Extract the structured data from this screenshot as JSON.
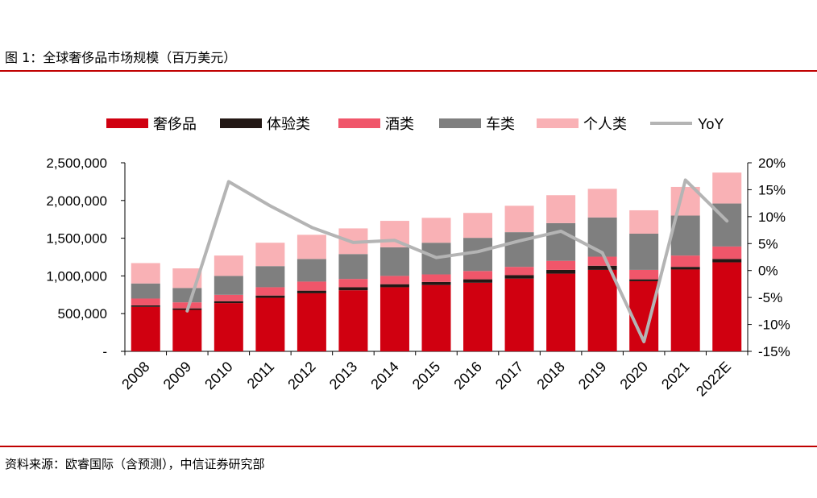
{
  "header": {
    "title": "图 1：全球奢侈品市场规模（百万美元）"
  },
  "footer": {
    "source": "资料来源：欧睿国际（含预测），中信证券研究部"
  },
  "colors": {
    "rule": "#c00000",
    "luxury": "#d00010",
    "experience": "#231815",
    "wine": "#f0566a",
    "car": "#7f7f7f",
    "personal": "#f9b1b5",
    "yoy": "#b4b4b4",
    "axis": "#000000"
  },
  "chart_data": {
    "type": "bar",
    "stacked": true,
    "title": "全球奢侈品市场规模（百万美元）",
    "categories": [
      "2008",
      "2009",
      "2010",
      "2011",
      "2012",
      "2013",
      "2014",
      "2015",
      "2016",
      "2017",
      "2018",
      "2019",
      "2020",
      "2021",
      "2022E"
    ],
    "y_left": {
      "min": 0,
      "max": 2500000,
      "ticks": [
        0,
        500000,
        1000000,
        1500000,
        2000000,
        2500000
      ],
      "tick_labels": [
        "-",
        "500,000",
        "1,000,000",
        "1,500,000",
        "2,000,000",
        "2,500,000"
      ]
    },
    "y_right": {
      "min": -15,
      "max": 20,
      "ticks": [
        -15,
        -10,
        -5,
        0,
        5,
        10,
        15,
        20
      ],
      "tick_labels": [
        "-15%",
        "-10%",
        "-5%",
        "0%",
        "5%",
        "10%",
        "15%",
        "20%"
      ]
    },
    "series": [
      {
        "name": "奢侈品",
        "key": "luxury",
        "values": [
          590000,
          550000,
          640000,
          710000,
          770000,
          810000,
          850000,
          880000,
          910000,
          965000,
          1030000,
          1080000,
          930000,
          1085000,
          1180000
        ]
      },
      {
        "name": "体验类",
        "key": "experience",
        "values": [
          20000,
          20000,
          25000,
          30000,
          35000,
          40000,
          40000,
          40000,
          45000,
          45000,
          50000,
          55000,
          25000,
          35000,
          45000
        ]
      },
      {
        "name": "酒类",
        "key": "wine",
        "values": [
          90000,
          80000,
          85000,
          110000,
          120000,
          110000,
          110000,
          100000,
          110000,
          110000,
          120000,
          120000,
          125000,
          150000,
          165000
        ]
      },
      {
        "name": "车类",
        "key": "car",
        "values": [
          200000,
          190000,
          250000,
          280000,
          300000,
          330000,
          380000,
          420000,
          440000,
          460000,
          500000,
          520000,
          480000,
          530000,
          570000
        ]
      },
      {
        "name": "个人类",
        "key": "personal",
        "values": [
          270000,
          260000,
          270000,
          310000,
          320000,
          340000,
          350000,
          330000,
          330000,
          350000,
          370000,
          380000,
          310000,
          380000,
          410000
        ]
      }
    ],
    "line": {
      "name": "YoY",
      "axis": "right",
      "values": [
        null,
        -7.5,
        16.5,
        12,
        8,
        5.2,
        5.6,
        2.4,
        3.5,
        5.5,
        7.3,
        3.3,
        -13.2,
        16.8,
        9.2
      ]
    },
    "legend_position": "top",
    "grid": false
  }
}
